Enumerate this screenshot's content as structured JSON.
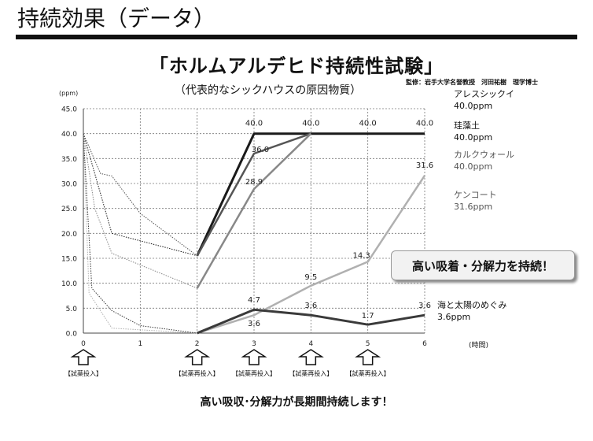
{
  "page": {
    "heading": "持続効果（データ）",
    "chart_title": "「ホルムアルデヒド持続性試験」",
    "chart_subtitle": "（代表的なシックハウスの原因物質）",
    "supervisor": "監修：岩手大学名誉教授　河田祐樹　理学博士",
    "callout": "高い吸着・分解力を持続！",
    "footer_note": "高い吸収･分解力が長期間持続します！"
  },
  "chart_data": {
    "type": "line",
    "title": "「ホルムアルデヒド持続性試験」",
    "subtitle": "（代表的なシックハウスの原因物質）",
    "xlabel": "(時間)",
    "ylabel": "(ppm)",
    "xlim": [
      0,
      6
    ],
    "ylim": [
      0,
      45
    ],
    "x_ticks": [
      "0",
      "1",
      "2",
      "3",
      "4",
      "5",
      "6"
    ],
    "y_ticks": [
      "0.0",
      "5.0",
      "10.0",
      "15.0",
      "20.0",
      "25.0",
      "30.0",
      "35.0",
      "40.0",
      "45.0"
    ],
    "grid": true,
    "series": [
      {
        "name": "アレスシックイ",
        "label": "40.0ppm",
        "color": "#1a1a1a",
        "width": 3,
        "solid": [
          [
            2,
            15.5
          ],
          [
            3,
            40
          ],
          [
            6,
            40
          ]
        ],
        "dotted": [
          [
            0,
            40
          ],
          [
            0.5,
            20
          ],
          [
            2,
            15.5
          ]
        ]
      },
      {
        "name": "珪藻土",
        "label": "40.0ppm",
        "color": "#555555",
        "width": 2.5,
        "solid": [
          [
            2,
            15.5
          ],
          [
            3,
            36
          ],
          [
            4,
            40
          ]
        ],
        "dotted": [
          [
            0,
            40
          ],
          [
            0.3,
            32
          ],
          [
            0.5,
            31.5
          ],
          [
            1,
            24
          ],
          [
            2,
            15.5
          ]
        ]
      },
      {
        "name": "カルクウォール",
        "label": "40.0ppm",
        "color": "#888888",
        "width": 2.5,
        "solid": [
          [
            2,
            9
          ],
          [
            3,
            28.9
          ],
          [
            4,
            40
          ]
        ],
        "dotted": [
          [
            0,
            40
          ],
          [
            0.2,
            25
          ],
          [
            0.5,
            16
          ],
          [
            2,
            9
          ]
        ]
      },
      {
        "name": "ケンコート",
        "label": "31.6ppm",
        "color": "#b0b0b0",
        "width": 2.5,
        "solid": [
          [
            2,
            0
          ],
          [
            3,
            3.6
          ],
          [
            4,
            9.5
          ],
          [
            5,
            14.3
          ],
          [
            6,
            31.6
          ]
        ],
        "dotted": [
          [
            0,
            40
          ],
          [
            0.1,
            8
          ],
          [
            0.5,
            1
          ],
          [
            2,
            0
          ]
        ]
      },
      {
        "name": "海と太陽のめぐみ",
        "label": "3.6ppm",
        "color": "#3a3a3a",
        "width": 3,
        "solid": [
          [
            2,
            0
          ],
          [
            3,
            4.7
          ],
          [
            4,
            3.6
          ],
          [
            5,
            1.7
          ],
          [
            6,
            3.6
          ]
        ],
        "dotted": [
          [
            0,
            40
          ],
          [
            0.15,
            9
          ],
          [
            0.5,
            4.5
          ],
          [
            1,
            1.5
          ],
          [
            2,
            0
          ]
        ]
      }
    ],
    "data_labels": [
      {
        "text": "40.0",
        "x": 3,
        "y": 40
      },
      {
        "text": "40.0",
        "x": 4,
        "y": 40
      },
      {
        "text": "40.0",
        "x": 5,
        "y": 40
      },
      {
        "text": "40.0",
        "x": 6,
        "y": 40
      },
      {
        "text": "36.0",
        "x": 3,
        "y": 36
      },
      {
        "text": "28.9",
        "x": 3,
        "y": 28.9
      },
      {
        "text": "31.6",
        "x": 6,
        "y": 31.6
      },
      {
        "text": "14.3",
        "x": 5,
        "y": 14.3
      },
      {
        "text": "9.5",
        "x": 4,
        "y": 9.5
      },
      {
        "text": "4.7",
        "x": 3,
        "y": 4.7
      },
      {
        "text": "3.6",
        "x": 4,
        "y": 3.6
      },
      {
        "text": "1.7",
        "x": 5,
        "y": 1.7
      },
      {
        "text": "3.6",
        "x": 6,
        "y": 3.6
      },
      {
        "text": "3.6",
        "x": 3,
        "y": 3.6
      }
    ],
    "markers": [
      {
        "x": 0,
        "label": "【試薬投入】"
      },
      {
        "x": 2,
        "label": "【試薬再投入】"
      },
      {
        "x": 3,
        "label": "【試薬再投入】"
      },
      {
        "x": 4,
        "label": "【試薬再投入】"
      },
      {
        "x": 5,
        "label": "【試薬再投入】"
      }
    ]
  }
}
